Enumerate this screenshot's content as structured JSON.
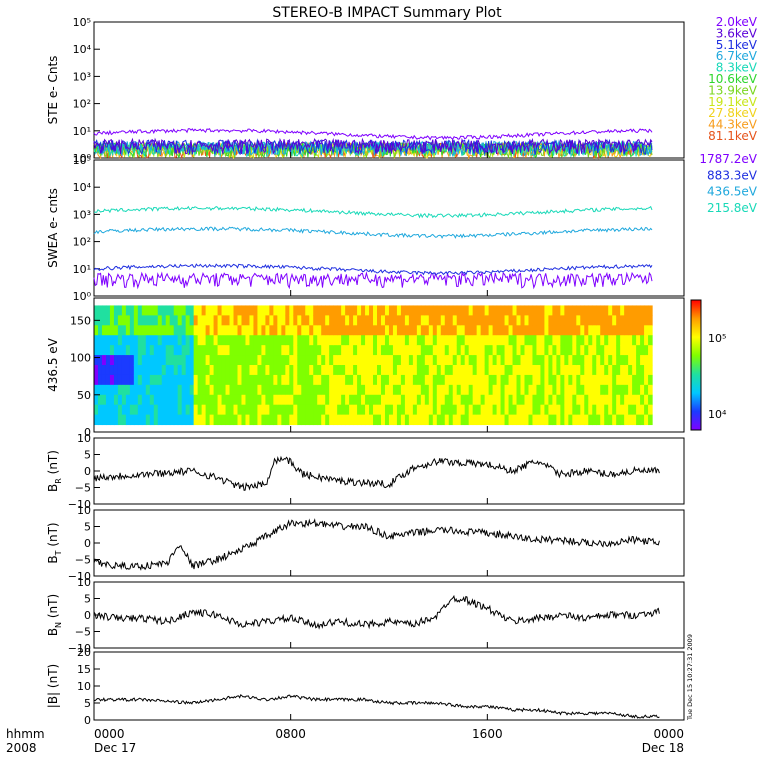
{
  "title": "STEREO-B IMPACT Summary Plot",
  "stamp": "Tue Dec 15 10:27:31 2009",
  "colors": {
    "ste": [
      "#7f00ff",
      "#5a00d8",
      "#1e2ee0",
      "#1fa8dd",
      "#19d9b8",
      "#2ed62e",
      "#7ad61f",
      "#c8e61a",
      "#f0d21c",
      "#f79d1d",
      "#e6541c"
    ],
    "swea": [
      "#7f00ff",
      "#1e2ee0",
      "#1fa8dd",
      "#19d9b8"
    ],
    "colorbar": [
      "#7f00ff",
      "#1b3bff",
      "#00c8ff",
      "#20e0a0",
      "#7fff00",
      "#ffff00",
      "#ff9c00",
      "#ff0000"
    ]
  },
  "chart_data": [
    {
      "type": "line",
      "id": "ste",
      "ylabel": "STE e- Cnts",
      "yscale": "log",
      "ylim": [
        1,
        100000
      ],
      "ytick_labels": [
        "10⁰",
        "10¹",
        "10²",
        "10³",
        "10⁴",
        "10⁵"
      ],
      "series": [
        {
          "name": "2.0keV",
          "level": 8
        },
        {
          "name": "3.6keV",
          "level": 1.4
        },
        {
          "name": "5.1keV",
          "level": 1.3
        },
        {
          "name": "6.7keV",
          "level": 1.2
        },
        {
          "name": "8.3keV",
          "level": 1.1
        },
        {
          "name": "10.6keV",
          "level": 1.05
        },
        {
          "name": "13.9keV",
          "level": 1.02
        },
        {
          "name": "19.1keV",
          "level": 1.01
        },
        {
          "name": "27.8keV",
          "level": 1.0
        },
        {
          "name": "44.3keV",
          "level": 1.0
        },
        {
          "name": "81.1keV",
          "level": 1.0
        }
      ]
    },
    {
      "type": "line",
      "id": "swea",
      "ylabel": "SWEA e- cnts",
      "yscale": "log",
      "ylim": [
        1,
        100000
      ],
      "ytick_labels": [
        "10⁰",
        "10¹",
        "10²",
        "10³",
        "10⁴",
        "10⁵"
      ],
      "series": [
        {
          "name": "1787.2eV",
          "level": 2
        },
        {
          "name": "883.3eV",
          "level": 10
        },
        {
          "name": "436.5eV",
          "level": 230
        },
        {
          "name": "215.8eV",
          "level": 1300
        }
      ]
    },
    {
      "type": "heatmap",
      "id": "pad",
      "ylabel": "436.5 eV",
      "ylim": [
        0,
        180
      ],
      "yticks": [
        0,
        50,
        100,
        150
      ],
      "colorbar": {
        "scale": "log",
        "range": [
          7000,
          250000
        ],
        "tick_labels": [
          "10⁴",
          "10⁵"
        ]
      }
    },
    {
      "type": "line",
      "id": "br",
      "ylabel": "B",
      "ylabel_sub": "R",
      "ylabel_unit": "(nT)",
      "ylim": [
        -10,
        10
      ],
      "yticks": [
        -10,
        -5,
        0,
        5,
        10
      ],
      "ytick_labels": [
        "−10",
        "−5",
        "0",
        "5",
        "10"
      ],
      "series": [
        {
          "points": [
            [
              0,
              -2
            ],
            [
              1,
              -1.5
            ],
            [
              2,
              -1
            ],
            [
              3,
              -0.5
            ],
            [
              4,
              0
            ],
            [
              5,
              -2
            ],
            [
              6,
              -5
            ],
            [
              7,
              -4
            ],
            [
              7.3,
              3
            ],
            [
              7.8,
              4
            ],
            [
              8.5,
              -1
            ],
            [
              10,
              -3
            ],
            [
              12,
              -4
            ],
            [
              13,
              1
            ],
            [
              14,
              3
            ],
            [
              16,
              2
            ],
            [
              17,
              0
            ],
            [
              18,
              3
            ],
            [
              19,
              -1
            ],
            [
              20,
              0
            ],
            [
              21,
              -1
            ],
            [
              22,
              0
            ],
            [
              23,
              0
            ]
          ]
        }
      ]
    },
    {
      "type": "line",
      "id": "bt",
      "ylabel": "B",
      "ylabel_sub": "T",
      "ylabel_unit": "(nT)",
      "ylim": [
        -10,
        10
      ],
      "yticks": [
        -10,
        -5,
        0,
        5,
        10
      ],
      "ytick_labels": [
        "−10",
        "−5",
        "0",
        "5",
        "10"
      ],
      "series": [
        {
          "points": [
            [
              0,
              -6
            ],
            [
              1,
              -7
            ],
            [
              2,
              -7
            ],
            [
              3,
              -6
            ],
            [
              3.5,
              0
            ],
            [
              4,
              -7
            ],
            [
              5,
              -5
            ],
            [
              6,
              -2
            ],
            [
              7,
              2
            ],
            [
              8,
              6
            ],
            [
              9,
              6
            ],
            [
              10,
              5
            ],
            [
              11,
              5
            ],
            [
              12,
              2
            ],
            [
              14,
              4
            ],
            [
              16,
              3
            ],
            [
              18,
              1
            ],
            [
              19,
              1
            ],
            [
              20,
              0
            ],
            [
              21,
              0
            ],
            [
              22,
              1
            ],
            [
              23,
              0
            ]
          ]
        }
      ]
    },
    {
      "type": "line",
      "id": "bn",
      "ylabel": "B",
      "ylabel_sub": "N",
      "ylabel_unit": "(nT)",
      "ylim": [
        -10,
        10
      ],
      "yticks": [
        -10,
        -5,
        0,
        5,
        10
      ],
      "ytick_labels": [
        "−10",
        "−5",
        "0",
        "5",
        "10"
      ],
      "series": [
        {
          "points": [
            [
              0,
              0
            ],
            [
              1,
              -1
            ],
            [
              2,
              -1
            ],
            [
              3,
              -2
            ],
            [
              4,
              1
            ],
            [
              5,
              0
            ],
            [
              6,
              -3
            ],
            [
              7,
              -2
            ],
            [
              8,
              -1
            ],
            [
              9,
              -3
            ],
            [
              10,
              -2
            ],
            [
              11,
              -3
            ],
            [
              12,
              -2
            ],
            [
              13,
              -3
            ],
            [
              14,
              0
            ],
            [
              14.5,
              5
            ],
            [
              15,
              5
            ],
            [
              16,
              2
            ],
            [
              17,
              -2
            ],
            [
              18,
              -1
            ],
            [
              19,
              0
            ],
            [
              20,
              -1
            ],
            [
              21,
              0
            ],
            [
              22,
              0
            ],
            [
              23,
              1
            ]
          ]
        }
      ]
    },
    {
      "type": "line",
      "id": "bmag",
      "ylabel": "|B| (nT)",
      "ylim": [
        0,
        20
      ],
      "yticks": [
        0,
        5,
        10,
        15,
        20
      ],
      "ytick_labels": [
        "0",
        "5",
        "10",
        "15",
        "20"
      ],
      "series": [
        {
          "points": [
            [
              0,
              6
            ],
            [
              2,
              6
            ],
            [
              4,
              5
            ],
            [
              5,
              6
            ],
            [
              6,
              7
            ],
            [
              7,
              6
            ],
            [
              8,
              7
            ],
            [
              9,
              6
            ],
            [
              10,
              6
            ],
            [
              11,
              6
            ],
            [
              12,
              5
            ],
            [
              13,
              5
            ],
            [
              14,
              5
            ],
            [
              15,
              4
            ],
            [
              16,
              4
            ],
            [
              17,
              3
            ],
            [
              18,
              3
            ],
            [
              19,
              2
            ],
            [
              20,
              2
            ],
            [
              21,
              2
            ],
            [
              22,
              1
            ],
            [
              23,
              1
            ]
          ]
        }
      ]
    }
  ],
  "x_axis": {
    "range_hours": [
      0,
      24
    ],
    "ticks": [
      {
        "hours": 0,
        "line1": "0000",
        "line2": "Dec 17"
      },
      {
        "hours": 8,
        "line1": "0800",
        "line2": ""
      },
      {
        "hours": 16,
        "line1": "1600",
        "line2": ""
      },
      {
        "hours": 24,
        "line1": "0000",
        "line2": "Dec 18"
      }
    ],
    "row_label_1": "hhmm",
    "row_label_2": "2008"
  }
}
